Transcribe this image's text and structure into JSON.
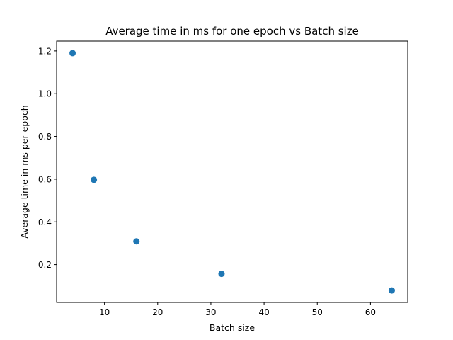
{
  "chart_data": {
    "type": "scatter",
    "title": "Average time in ms for one epoch vs Batch size",
    "xlabel": "Batch size",
    "ylabel": "Average time in ms per epoch",
    "x": [
      4,
      8,
      16,
      32,
      64
    ],
    "y": [
      1.19,
      0.597,
      0.309,
      0.157,
      0.079
    ],
    "xlim": [
      1.0,
      67.0
    ],
    "ylim": [
      0.023,
      1.246
    ],
    "xticks": [
      10,
      20,
      30,
      40,
      50,
      60
    ],
    "xtick_labels": [
      "10",
      "20",
      "30",
      "40",
      "50",
      "60"
    ],
    "yticks": [
      0.2,
      0.4,
      0.6,
      0.8,
      1.0,
      1.2
    ],
    "ytick_labels": [
      "0.2",
      "0.4",
      "0.6",
      "0.8",
      "1.0",
      "1.2"
    ],
    "marker_color": "#1f77b4",
    "grid": false,
    "legend": "none"
  }
}
